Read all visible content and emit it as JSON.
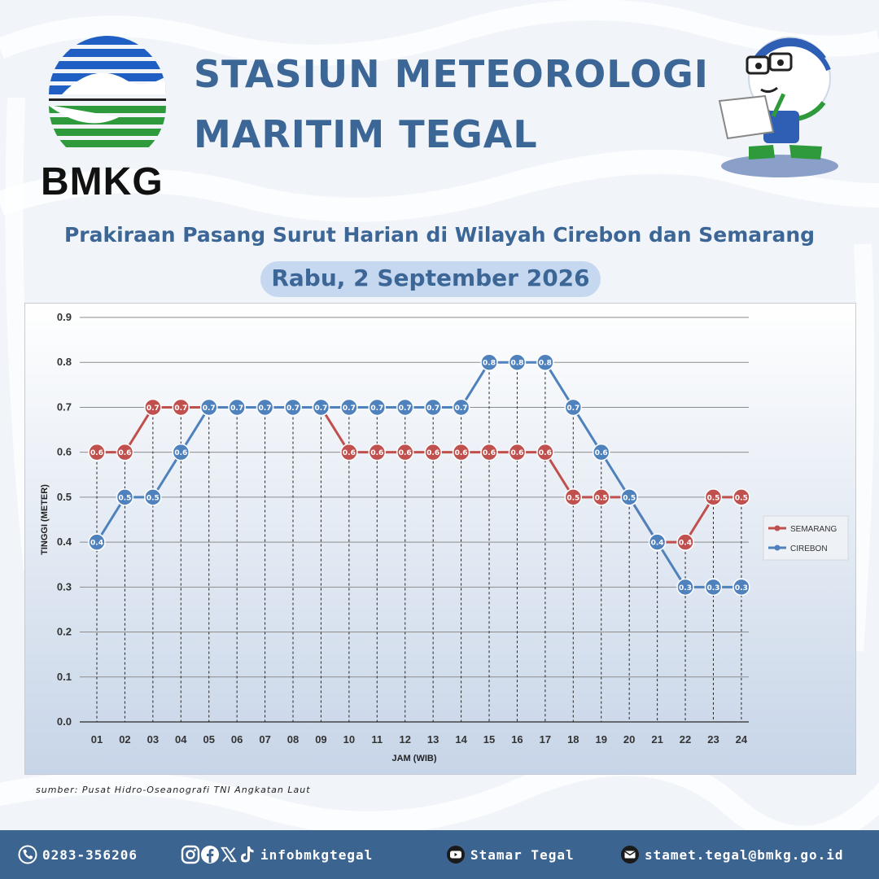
{
  "header": {
    "logo_text": "BMKG",
    "title_line1": "STASIUN METEOROLOGI",
    "title_line2": "MARITIM TEGAL"
  },
  "subtitle": "Prakiraan Pasang Surut Harian di Wilayah Cirebon dan Semarang",
  "date": "Rabu, 2 September 2026",
  "source": "sumber: Pusat Hidro-Oseanografi TNI Angkatan Laut",
  "footer": {
    "phone": "0283-356206",
    "social": "infobmkgtegal",
    "youtube": "Stamar Tegal",
    "email": "stamet.tegal@bmkg.go.id",
    "icons": [
      "phone-icon",
      "instagram-icon",
      "facebook-icon",
      "x-icon",
      "tiktok-icon",
      "youtube-icon",
      "email-icon"
    ]
  },
  "colors": {
    "primary": "#3b6696",
    "footer_bg": "#3c6491",
    "semarang": "#c0504d",
    "cirebon": "#4f81bd"
  },
  "chart_data": {
    "type": "line",
    "title": "",
    "xlabel": "JAM (WIB)",
    "ylabel": "TINGGI (METER)",
    "categories": [
      "01",
      "02",
      "03",
      "04",
      "05",
      "06",
      "07",
      "08",
      "09",
      "10",
      "11",
      "12",
      "13",
      "14",
      "15",
      "16",
      "17",
      "18",
      "19",
      "20",
      "21",
      "22",
      "23",
      "24"
    ],
    "ylim": [
      0,
      0.9
    ],
    "yticks": [
      "0.0",
      "0.1",
      "0.2",
      "0.3",
      "0.4",
      "0.5",
      "0.6",
      "0.7",
      "0.8",
      "0.9"
    ],
    "grid": true,
    "legend_position": "right",
    "series": [
      {
        "name": "SEMARANG",
        "color": "#c0504d",
        "values": [
          0.6,
          0.6,
          0.7,
          0.7,
          0.7,
          0.7,
          0.7,
          0.7,
          0.7,
          0.6,
          0.6,
          0.6,
          0.6,
          0.6,
          0.6,
          0.6,
          0.6,
          0.5,
          0.5,
          0.5,
          0.4,
          0.4,
          0.5,
          0.5
        ]
      },
      {
        "name": "CIREBON",
        "color": "#4f81bd",
        "values": [
          0.4,
          0.5,
          0.5,
          0.6,
          0.7,
          0.7,
          0.7,
          0.7,
          0.7,
          0.7,
          0.7,
          0.7,
          0.7,
          0.7,
          0.8,
          0.8,
          0.8,
          0.7,
          0.6,
          0.5,
          0.4,
          0.3,
          0.3,
          0.3
        ]
      }
    ]
  }
}
